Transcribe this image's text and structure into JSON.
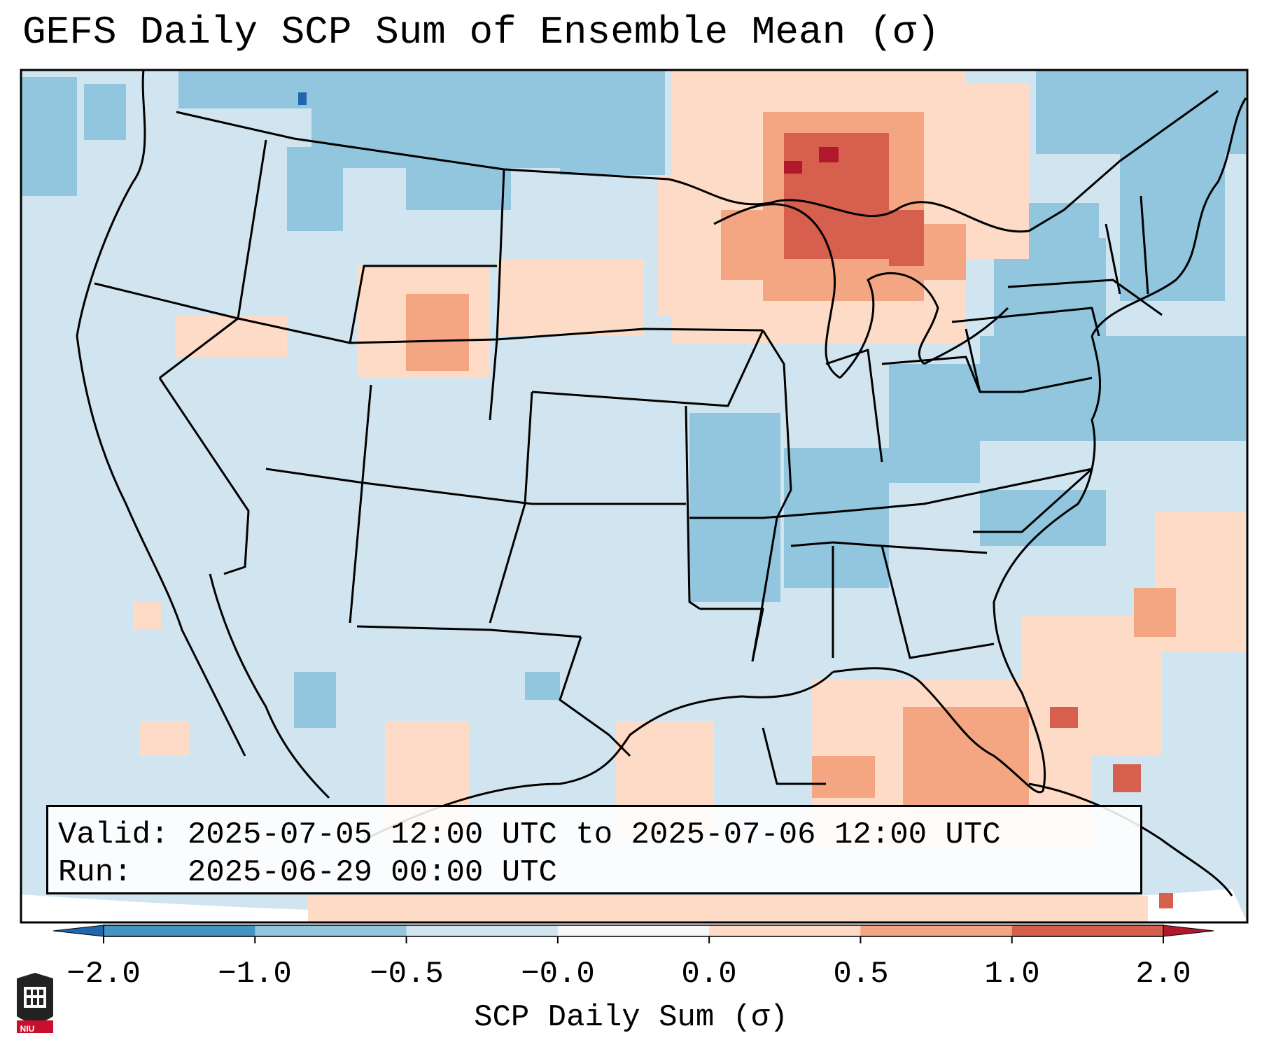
{
  "title": "GEFS Daily SCP Sum of Ensemble Mean (σ)",
  "info": {
    "valid_label": "Valid:",
    "valid_value": "2025-07-05 12:00 UTC to 2025-07-06 12:00 UTC",
    "run_label": "Run:",
    "run_value": "2025-06-29 00:00 UTC"
  },
  "colorbar": {
    "label": "SCP Daily Sum (σ)",
    "ticks": [
      "−2.0",
      "−1.0",
      "−0.5",
      "−0.0",
      "0.0",
      "0.5",
      "1.0",
      "2.0"
    ],
    "bin_colors": [
      "#4393c3",
      "#92c5de",
      "#d1e5f0",
      "#f7f7f7",
      "#fddbc7",
      "#f4a582",
      "#d6604d"
    ],
    "under_color": "#2166ac",
    "over_color": "#b2182b"
  },
  "colors": {
    "ocean_background": "#d1e5f0",
    "border": "#000000"
  },
  "logo": {
    "text": "NIU"
  }
}
